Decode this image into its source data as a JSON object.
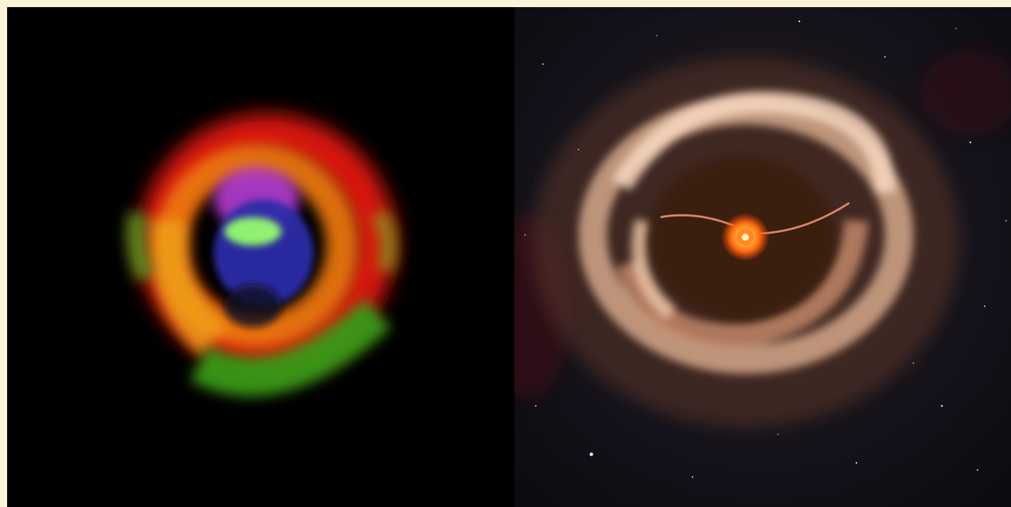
{
  "frame": {
    "background": "#fdf3d8"
  },
  "panels": [
    {
      "id": "left",
      "description_role": "observation",
      "background": "#000000",
      "colors": {
        "outer_ring": "#e81a0a",
        "mid_ring": "#f07a10",
        "inner_ring": "#f0b020",
        "green_arc": "#3aa01a",
        "magenta_core": "#c040e0",
        "blue_core": "#2828a0",
        "green_core": "#90f070"
      }
    },
    {
      "id": "right",
      "description_role": "illustration",
      "background": "#0b0c10",
      "colors": {
        "disk_outer": "#6a3a24",
        "disk_bright": "#f2c9a8",
        "cavity": "#3a1a10",
        "star_glow": "#ff7a1a",
        "star_core": "#ffe8b0"
      }
    }
  ]
}
